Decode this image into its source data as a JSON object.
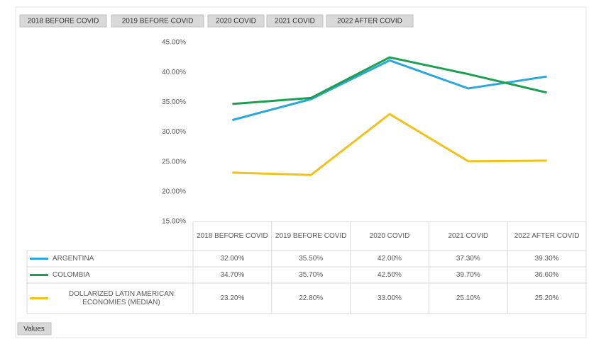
{
  "chart_data": {
    "type": "line",
    "field_buttons": [
      "2018 BEFORE COVID",
      "2019 BEFORE COVID",
      "2020 COVID",
      "2021 COVID",
      "2022 AFTER COVID"
    ],
    "categories": [
      "2018 BEFORE COVID",
      "2019 BEFORE COVID",
      "2020 COVID",
      "2021 COVID",
      "2022 AFTER COVID"
    ],
    "series": [
      {
        "name": "ARGENTINA",
        "color": "#2aa8dc",
        "values": [
          32.0,
          35.5,
          42.0,
          37.3,
          39.3
        ],
        "value_labels": [
          "32.00%",
          "35.50%",
          "42.00%",
          "37.30%",
          "39.30%"
        ]
      },
      {
        "name": "COLOMBIA",
        "color": "#1aa050",
        "values": [
          34.7,
          35.7,
          42.5,
          39.7,
          36.6
        ],
        "value_labels": [
          "34.70%",
          "35.70%",
          "42.50%",
          "39.70%",
          "36.60%"
        ]
      },
      {
        "name": "DOLLARIZED LATIN AMERICAN ECONOMIES (MEDIAN)",
        "color": "#f2c21b",
        "values": [
          23.2,
          22.8,
          33.0,
          25.1,
          25.2
        ],
        "value_labels": [
          "23.20%",
          "22.80%",
          "33.00%",
          "25.10%",
          "25.20%"
        ]
      }
    ],
    "ylim": [
      15,
      45
    ],
    "yticks": [
      {
        "value": 15,
        "label": "15.00%"
      },
      {
        "value": 20,
        "label": "20.00%"
      },
      {
        "value": 25,
        "label": "25.00%"
      },
      {
        "value": 30,
        "label": "30.00%"
      },
      {
        "value": 35,
        "label": "35.00%"
      },
      {
        "value": 40,
        "label": "40.00%"
      },
      {
        "value": 45,
        "label": "45.00%"
      }
    ],
    "grid": false,
    "values_button": "Values"
  }
}
